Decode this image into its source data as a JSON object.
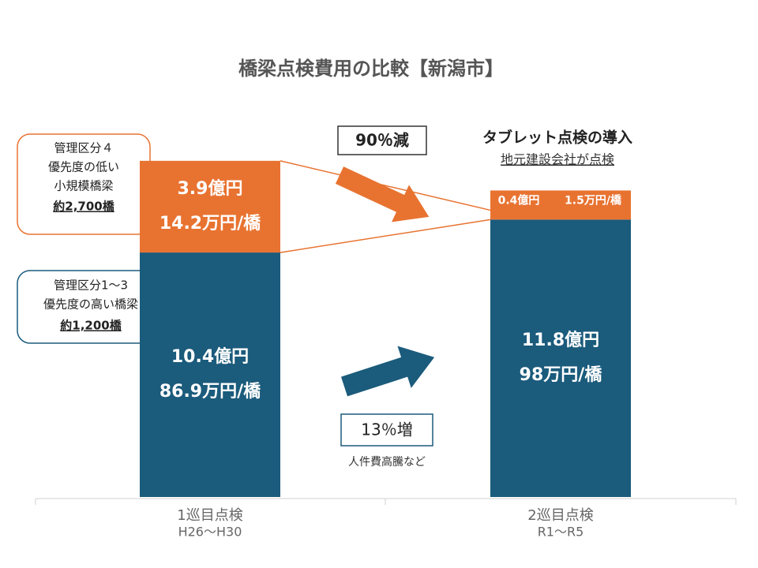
{
  "chart_data": {
    "type": "stacked_bar",
    "title": "橋梁点検費用の比較【新潟市】",
    "categories": [
      "1巡目点検",
      "2巡目点検"
    ],
    "category_sublabels": [
      "H26～H30",
      "R1～R5"
    ],
    "series": [
      {
        "color": "#1b5b7c",
        "values": [
          10.4,
          11.8
        ],
        "value_labels": [
          "10.4億円",
          "11.8億円"
        ],
        "unit_cost_labels": [
          "86.9万円/橋",
          "98万円/橋"
        ]
      },
      {
        "color": "#e87331",
        "values": [
          3.9,
          0.4
        ],
        "value_labels": [
          "3.9億円",
          "0.4億円"
        ],
        "unit_cost_labels": [
          "14.2万円/橋",
          "1.5万円/橋"
        ]
      }
    ],
    "annotations": {
      "decrease": "90％減",
      "increase": "13％増",
      "increase_note": "人件費高騰など",
      "introduction_title": "タブレット点検の導入",
      "introduction_note": "地元建設会社が点検",
      "group_low": [
        "管理区分４",
        "優先度の低い",
        "小規模橋梁",
        "約2,700橋"
      ],
      "group_high": [
        "管理区分1～3",
        "優先度の高い橋梁",
        "約1,200橋"
      ]
    }
  }
}
